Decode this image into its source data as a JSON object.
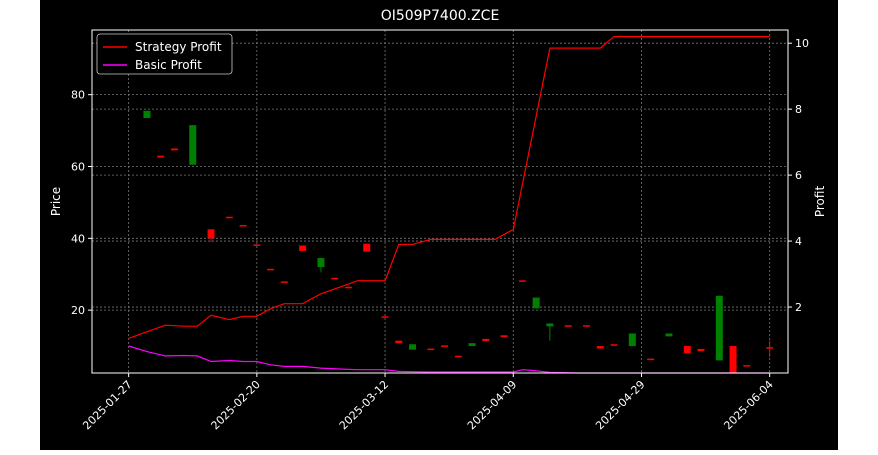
{
  "chart_data": {
    "type": "candlestick",
    "title": "OI509P7400.ZCE",
    "xlabel": "",
    "ylabel": "Price",
    "y2label": "Profit",
    "ylim": [
      2.5,
      98
    ],
    "y2lim": [
      0.0,
      10.4
    ],
    "yticks": [
      20,
      40,
      60,
      80
    ],
    "y2ticks": [
      2,
      4,
      6,
      8,
      10
    ],
    "x_range": [
      0,
      72
    ],
    "xticks": [
      {
        "idx": 4,
        "label": "2025-01-27"
      },
      {
        "idx": 18,
        "label": "2025-02-20"
      },
      {
        "idx": 32,
        "label": "2025-03-12"
      },
      {
        "idx": 46,
        "label": "2025-04-09"
      },
      {
        "idx": 60,
        "label": "2025-04-29"
      },
      {
        "idx": 74,
        "label": "2025-06-04"
      }
    ],
    "grid": true,
    "legend_position": "top-left",
    "colors": {
      "up": "#008000",
      "down": "#ff0000",
      "strategy": "#ff0000",
      "basic": "#ff00ff"
    },
    "candles": [
      {
        "idx": 6,
        "open": 73.5,
        "close": 75.5,
        "high": 75.5,
        "low": 73.5
      },
      {
        "idx": 7.5,
        "open": 63,
        "close": 62.5,
        "high": 63,
        "low": 62.5
      },
      {
        "idx": 9,
        "open": 65,
        "close": 64.5,
        "high": 65,
        "low": 64.5
      },
      {
        "idx": 11,
        "open": 60.5,
        "close": 71.5,
        "high": 71.5,
        "low": 60.5
      },
      {
        "idx": 13,
        "open": 42.5,
        "close": 40,
        "high": 42.5,
        "low": 39
      },
      {
        "idx": 15,
        "open": 46,
        "close": 45.7,
        "high": 46,
        "low": 45.7
      },
      {
        "idx": 16.5,
        "open": 43.7,
        "close": 43.4,
        "high": 43.7,
        "low": 43.4
      },
      {
        "idx": 18,
        "open": 38.3,
        "close": 38,
        "high": 38.3,
        "low": 38
      },
      {
        "idx": 19.5,
        "open": 31.5,
        "close": 31.2,
        "high": 31.5,
        "low": 31.2
      },
      {
        "idx": 21,
        "open": 28,
        "close": 27.7,
        "high": 28,
        "low": 27.7
      },
      {
        "idx": 23,
        "open": 38,
        "close": 36.5,
        "high": 38,
        "low": 36.5
      },
      {
        "idx": 25,
        "open": 32,
        "close": 34.5,
        "high": 34.5,
        "low": 30.5
      },
      {
        "idx": 26.5,
        "open": 29,
        "close": 28.7,
        "high": 29,
        "low": 28.7
      },
      {
        "idx": 28,
        "open": 26.5,
        "close": 26.2,
        "high": 26.5,
        "low": 26.2
      },
      {
        "idx": 30,
        "open": 38.5,
        "close": 36.3,
        "high": 38.5,
        "low": 36.3
      },
      {
        "idx": 32,
        "open": 18.3,
        "close": 18,
        "high": 18.3,
        "low": 18
      },
      {
        "idx": 33.5,
        "open": 11.5,
        "close": 10.8,
        "high": 11.5,
        "low": 10.8
      },
      {
        "idx": 35,
        "open": 9,
        "close": 10.5,
        "high": 10.5,
        "low": 9
      },
      {
        "idx": 37,
        "open": 9.3,
        "close": 9,
        "high": 9.3,
        "low": 9
      },
      {
        "idx": 38.5,
        "open": 10.2,
        "close": 9.9,
        "high": 10.2,
        "low": 9.9
      },
      {
        "idx": 40,
        "open": 7.3,
        "close": 7,
        "high": 7.3,
        "low": 7
      },
      {
        "idx": 41.5,
        "open": 10,
        "close": 10.8,
        "high": 10.8,
        "low": 10
      },
      {
        "idx": 43,
        "open": 12,
        "close": 11.4,
        "high": 12,
        "low": 11.4
      },
      {
        "idx": 45,
        "open": 13,
        "close": 12.5,
        "high": 13,
        "low": 12.5
      },
      {
        "idx": 47,
        "open": 28.3,
        "close": 28,
        "high": 28.3,
        "low": 28
      },
      {
        "idx": 48.5,
        "open": 20.5,
        "close": 23.5,
        "high": 23.5,
        "low": 20.5
      },
      {
        "idx": 50,
        "open": 15.5,
        "close": 16.3,
        "high": 16.3,
        "low": 11.5
      },
      {
        "idx": 52,
        "open": 15.8,
        "close": 15.5,
        "high": 15.8,
        "low": 15.5
      },
      {
        "idx": 54,
        "open": 15.8,
        "close": 15.5,
        "high": 15.8,
        "low": 15.5
      },
      {
        "idx": 55.5,
        "open": 10,
        "close": 9.3,
        "high": 10,
        "low": 9.3
      },
      {
        "idx": 57,
        "open": 10.5,
        "close": 10.2,
        "high": 10.5,
        "low": 10.2
      },
      {
        "idx": 59,
        "open": 10,
        "close": 13.5,
        "high": 13.5,
        "low": 10
      },
      {
        "idx": 61,
        "open": 6.5,
        "close": 6.2,
        "high": 6.5,
        "low": 6.2
      },
      {
        "idx": 63,
        "open": 12.7,
        "close": 13.5,
        "high": 13.5,
        "low": 12.7
      },
      {
        "idx": 65,
        "open": 10,
        "close": 8,
        "high": 10,
        "low": 8
      },
      {
        "idx": 66.5,
        "open": 9.2,
        "close": 8.6,
        "high": 9.2,
        "low": 8.6
      },
      {
        "idx": 68.5,
        "open": 6,
        "close": 24,
        "high": 24,
        "low": 6
      },
      {
        "idx": 70,
        "open": 10,
        "close": 2.5,
        "high": 10,
        "low": 2.5
      },
      {
        "idx": 71.5,
        "open": 4.7,
        "close": 4.4,
        "high": 4.7,
        "low": 4.4
      },
      {
        "idx": 74,
        "open": 9.7,
        "close": 9.4,
        "high": 11.5,
        "low": 7
      }
    ],
    "series": [
      {
        "name": "Strategy Profit",
        "axis": "right",
        "points": [
          [
            4,
            1.05
          ],
          [
            6,
            1.25
          ],
          [
            8,
            1.45
          ],
          [
            10,
            1.42
          ],
          [
            11.5,
            1.42
          ],
          [
            13,
            1.75
          ],
          [
            15,
            1.62
          ],
          [
            16.5,
            1.72
          ],
          [
            18,
            1.72
          ],
          [
            19.5,
            1.95
          ],
          [
            21,
            2.1
          ],
          [
            23,
            2.1
          ],
          [
            25,
            2.4
          ],
          [
            27,
            2.6
          ],
          [
            29,
            2.8
          ],
          [
            31,
            2.8
          ],
          [
            32,
            2.8
          ],
          [
            33.5,
            3.9
          ],
          [
            35,
            3.9
          ],
          [
            37,
            4.05
          ],
          [
            40,
            4.05
          ],
          [
            42,
            4.05
          ],
          [
            44,
            4.05
          ],
          [
            46,
            4.35
          ],
          [
            50,
            9.85
          ],
          [
            53,
            9.85
          ],
          [
            55.5,
            9.85
          ],
          [
            57,
            10.2
          ],
          [
            60,
            10.2
          ],
          [
            65,
            10.2
          ],
          [
            70,
            10.2
          ],
          [
            74,
            10.2
          ]
        ]
      },
      {
        "name": "Basic Profit",
        "axis": "right",
        "points": [
          [
            4,
            0.82
          ],
          [
            6,
            0.65
          ],
          [
            8,
            0.52
          ],
          [
            10,
            0.53
          ],
          [
            11.5,
            0.52
          ],
          [
            13,
            0.35
          ],
          [
            15,
            0.38
          ],
          [
            16.5,
            0.35
          ],
          [
            18,
            0.35
          ],
          [
            19.5,
            0.25
          ],
          [
            21,
            0.2
          ],
          [
            23,
            0.2
          ],
          [
            25,
            0.15
          ],
          [
            27,
            0.12
          ],
          [
            29,
            0.1
          ],
          [
            31,
            0.1
          ],
          [
            32,
            0.1
          ],
          [
            33.5,
            0.05
          ],
          [
            35,
            0.04
          ],
          [
            37,
            0.03
          ],
          [
            40,
            0.03
          ],
          [
            44,
            0.03
          ],
          [
            46,
            0.03
          ],
          [
            47,
            0.1
          ],
          [
            48,
            0.08
          ],
          [
            50,
            0.02
          ],
          [
            53,
            0.0
          ],
          [
            60,
            0.0
          ],
          [
            65,
            0.0
          ],
          [
            70,
            0.0
          ],
          [
            74,
            0.0
          ]
        ]
      }
    ]
  }
}
